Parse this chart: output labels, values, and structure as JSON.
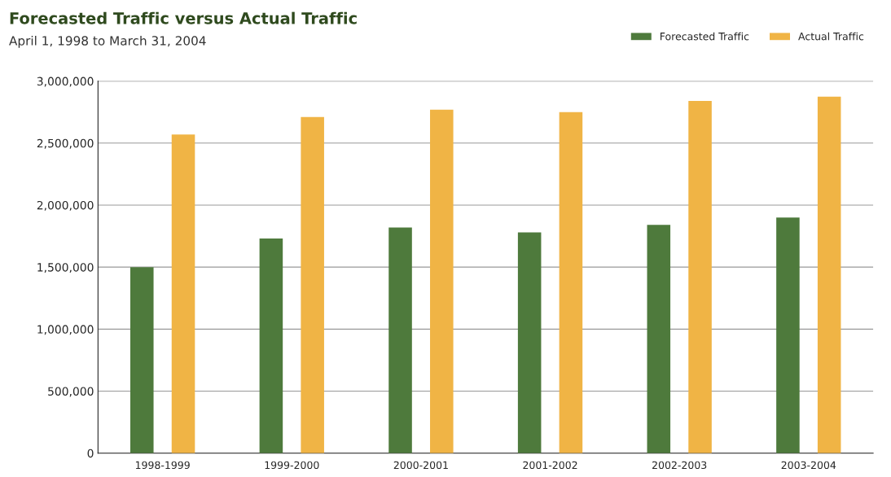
{
  "chart_data": {
    "type": "bar",
    "title": "Forecasted Traffic versus Actual Traffic",
    "subtitle": "April 1, 1998 to March 31, 2004",
    "categories": [
      "1998-1999",
      "1999-2000",
      "2000-2001",
      "2001-2002",
      "2002-2003",
      "2003-2004"
    ],
    "series": [
      {
        "name": "Forecasted Traffic",
        "color": "#4e7a3c",
        "values": [
          1500000,
          1730000,
          1820000,
          1780000,
          1840000,
          1900000
        ]
      },
      {
        "name": "Actual Traffic",
        "color": "#f0b445",
        "values": [
          2570000,
          2710000,
          2770000,
          2750000,
          2840000,
          2875000
        ]
      }
    ],
    "ylim": [
      0,
      3000000
    ],
    "yticks": [
      {
        "value": 0,
        "label": "0"
      },
      {
        "value": 500000,
        "label": "500,000"
      },
      {
        "value": 1000000,
        "label": "1,000,000"
      },
      {
        "value": 1500000,
        "label": "1,500,000"
      },
      {
        "value": 2000000,
        "label": "2,000,000"
      },
      {
        "value": 2500000,
        "label": "2,500,000"
      },
      {
        "value": 3000000,
        "label": "3,000,000"
      }
    ],
    "grid": "y",
    "legend": "top right"
  }
}
